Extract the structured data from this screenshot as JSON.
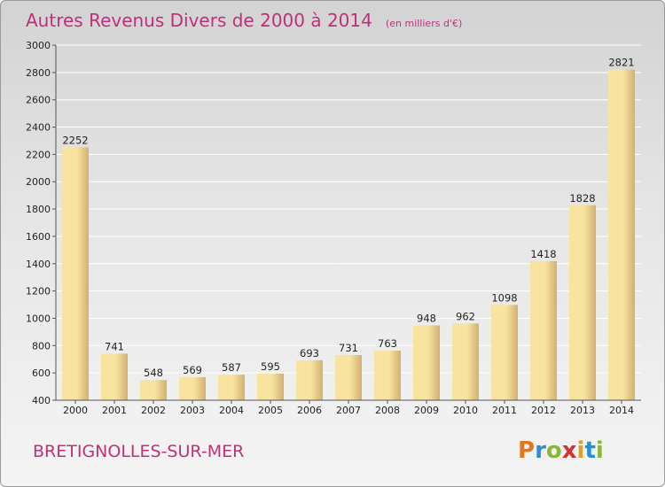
{
  "header": {
    "title": "Autres Revenus Divers de 2000 à 2014",
    "unit": "(en milliers d'€)"
  },
  "footer": {
    "town": "BRETIGNOLLES-SUR-MER",
    "logo_text": "Proxiti",
    "logo_letters": [
      {
        "char": "P",
        "color": "#e07820"
      },
      {
        "char": "r",
        "color": "#2a8fd0"
      },
      {
        "char": "o",
        "color": "#8ab830"
      },
      {
        "char": "x",
        "color": "#d63030"
      },
      {
        "char": "i",
        "color": "#e0a020"
      },
      {
        "char": "t",
        "color": "#2a8fd0"
      },
      {
        "char": "i",
        "color": "#8ab830"
      }
    ]
  },
  "colors": {
    "bar_light": "#f8e4a0",
    "bar_dark": "#d2b070",
    "title": "#c0307a"
  },
  "chart_data": {
    "type": "bar",
    "categories": [
      "2000",
      "2001",
      "2002",
      "2003",
      "2004",
      "2005",
      "2006",
      "2007",
      "2008",
      "2009",
      "2010",
      "2011",
      "2012",
      "2013",
      "2014"
    ],
    "values": [
      2252,
      741,
      548,
      569,
      587,
      595,
      693,
      731,
      763,
      948,
      962,
      1098,
      1418,
      1828,
      2821
    ],
    "ylim": [
      400,
      3000
    ],
    "yticks": [
      400,
      600,
      800,
      1000,
      1200,
      1400,
      1600,
      1800,
      2000,
      2200,
      2400,
      2600,
      2800,
      3000
    ],
    "grid": true,
    "title": "Autres Revenus Divers de 2000 à 2014"
  }
}
